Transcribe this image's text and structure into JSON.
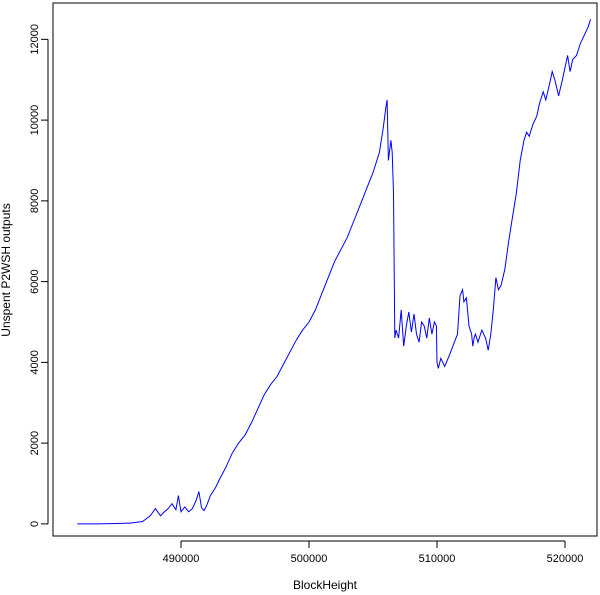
{
  "chart_data": {
    "type": "line",
    "xlabel": "BlockHeight",
    "ylabel": "Unspent P2WSH outputs",
    "xlim": [
      480000,
      522500
    ],
    "ylim": [
      -300,
      12900
    ],
    "x_ticks": [
      490000,
      500000,
      510000,
      520000
    ],
    "x_tick_labels": [
      "490000",
      "500000",
      "510000",
      "520000"
    ],
    "y_ticks": [
      0,
      2000,
      4000,
      6000,
      8000,
      10000,
      12000
    ],
    "y_tick_labels": [
      "0",
      "2000",
      "4000",
      "6000",
      "8000",
      "10000",
      "12000"
    ],
    "grid": false,
    "line_color": "#0000ff",
    "series": [
      {
        "x": [
          481900,
          483500,
          485000,
          486000,
          487000,
          487600,
          488000,
          488400,
          488700,
          489000,
          489300,
          489600,
          489800,
          490000,
          490300,
          490600,
          490900,
          491200,
          491400,
          491600,
          491800,
          492000,
          492300,
          492700,
          493000,
          493500,
          494000,
          494500,
          495000,
          495500,
          496000,
          496500,
          497000,
          497500,
          498000,
          498500,
          499000,
          499500,
          500000,
          500500,
          501000,
          501500,
          502000,
          502500,
          503000,
          503500,
          504000,
          504500,
          505000,
          505500,
          505800,
          506000,
          506100,
          506200,
          506400,
          506500,
          506600,
          506700,
          506800,
          507000,
          507200,
          507400,
          507600,
          507800,
          508000,
          508200,
          508400,
          508600,
          508800,
          509000,
          509200,
          509400,
          509600,
          509800,
          509950,
          510000,
          510100,
          510300,
          510600,
          511000,
          511300,
          511600,
          511800,
          512000,
          512100,
          512300,
          512500,
          512700,
          512800,
          512900,
          513000,
          513200,
          513500,
          513800,
          514000,
          514200,
          514400,
          514600,
          514800,
          515000,
          515300,
          515600,
          515900,
          516200,
          516500,
          516800,
          517000,
          517200,
          517500,
          517800,
          518000,
          518300,
          518500,
          518800,
          519000,
          519200,
          519500,
          519800,
          520000,
          520200,
          520400,
          520600,
          520900,
          521200,
          521500,
          521800,
          522000
        ],
        "y": [
          0,
          0,
          10,
          20,
          60,
          200,
          380,
          200,
          300,
          380,
          500,
          350,
          700,
          300,
          420,
          300,
          380,
          600,
          800,
          400,
          330,
          450,
          700,
          900,
          1100,
          1400,
          1750,
          2000,
          2200,
          2500,
          2850,
          3200,
          3450,
          3650,
          3950,
          4250,
          4550,
          4800,
          5000,
          5300,
          5700,
          6100,
          6500,
          6800,
          7100,
          7500,
          7900,
          8300,
          8700,
          9200,
          9800,
          10300,
          10500,
          9000,
          9500,
          9200,
          8200,
          4600,
          4800,
          4600,
          5300,
          4400,
          4900,
          5250,
          4750,
          5200,
          4700,
          4500,
          5000,
          4900,
          4600,
          5100,
          4700,
          5000,
          4900,
          4000,
          3850,
          4100,
          3900,
          4200,
          4450,
          4700,
          5650,
          5800,
          5500,
          5600,
          4900,
          4700,
          4400,
          4600,
          4700,
          4500,
          4800,
          4600,
          4300,
          4700,
          5300,
          6100,
          5800,
          5900,
          6300,
          7000,
          7600,
          8200,
          9000,
          9500,
          9700,
          9600,
          9900,
          10100,
          10400,
          10700,
          10500,
          10900,
          11200,
          11000,
          10600,
          11000,
          11300,
          11600,
          11200,
          11500,
          11600,
          11900,
          12100,
          12300,
          12500
        ]
      }
    ]
  }
}
